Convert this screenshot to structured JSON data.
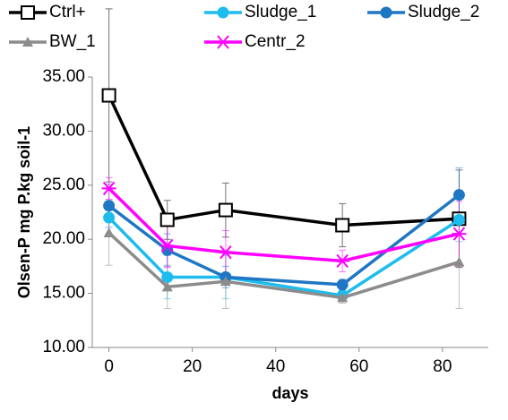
{
  "chart_data": {
    "type": "line",
    "x_label": "days",
    "y_label": "Olsen-P mg P.kg soil-1",
    "x": [
      0,
      14,
      28,
      56,
      84
    ],
    "series": [
      {
        "name": "Ctrl+",
        "color": "#000000",
        "marker": "square",
        "values": [
          33.3,
          21.8,
          22.7,
          21.3,
          21.9
        ],
        "errors": [
          8,
          1.8,
          2.5,
          2.0,
          4.5
        ]
      },
      {
        "name": "Sludge_1",
        "color": "#1ebcec",
        "marker": "circle",
        "values": [
          22.0,
          16.5,
          16.5,
          14.8,
          21.8
        ],
        "errors": [
          1.5,
          2,
          2,
          0.5,
          2
        ]
      },
      {
        "name": "Sludge_2",
        "color": "#1f77c4",
        "marker": "circle",
        "values": [
          23.1,
          19.0,
          16.5,
          15.8,
          24.1
        ],
        "errors": [
          2,
          1.5,
          1,
          0.5,
          2.5
        ]
      },
      {
        "name": "BW_1",
        "color": "#8c8c8c",
        "marker": "triangle",
        "values": [
          20.6,
          15.6,
          16.1,
          14.6,
          17.9
        ],
        "errors": [
          3,
          2,
          2.5,
          0.5,
          4.3
        ]
      },
      {
        "name": "Centr_2",
        "color": "#ff00ff",
        "marker": "star",
        "values": [
          24.7,
          19.4,
          18.8,
          18.0,
          20.5
        ],
        "errors": [
          1,
          2,
          2,
          1,
          3
        ]
      }
    ],
    "xlim": [
      -4,
      91
    ],
    "xticks": [
      0,
      20,
      40,
      60,
      80
    ],
    "ylim": [
      10,
      35
    ],
    "yticks": [
      {
        "value": 10,
        "label": "10.00"
      },
      {
        "value": 15,
        "label": "15.00"
      },
      {
        "value": 20,
        "label": "20.00"
      },
      {
        "value": 25,
        "label": "25.00"
      },
      {
        "value": 30,
        "label": "30.00"
      },
      {
        "value": 35,
        "label": "35.00"
      }
    ],
    "grid": false
  }
}
